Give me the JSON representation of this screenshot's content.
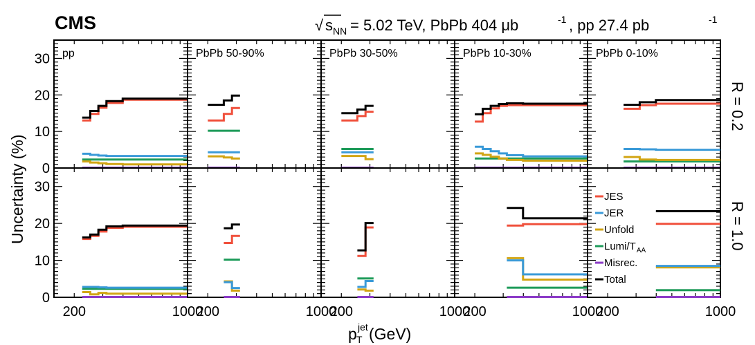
{
  "header": {
    "experiment": "CMS",
    "sqrt": "√",
    "s": "s",
    "s_sub": "NN",
    "energy": " = 5.02 TeV, PbPb 404 μb",
    "sup1": "-1",
    "pp_lumi": ", pp 27.4 pb",
    "sup2": "-1"
  },
  "colors": {
    "JES": "#f0503c",
    "JER": "#3a9ad8",
    "Unfold": "#d2a514",
    "LumiTAA": "#1e9b5a",
    "Misrec": "#8c3cc8",
    "Total": "#000000"
  },
  "legend": [
    {
      "key": "JES",
      "label": "JES",
      "sub": ""
    },
    {
      "key": "JER",
      "label": "JER",
      "sub": ""
    },
    {
      "key": "Unfold",
      "label": "Unfold",
      "sub": ""
    },
    {
      "key": "LumiTAA",
      "label": "Lumi/T",
      "sub": "AA"
    },
    {
      "key": "Misrec",
      "label": "Misrec.",
      "sub": ""
    },
    {
      "key": "Total",
      "label": "Total",
      "sub": ""
    }
  ],
  "chart_data": {
    "type": "line",
    "step": true,
    "ylabel": "Uncertainty (%)",
    "xlabel": "p",
    "xlabel_sup": "jet",
    "xlabel_sub": "T",
    "xlabel_unit": " (GeV)",
    "xscale": "log",
    "xlim": [
      150,
      1000
    ],
    "ylim": [
      0,
      35
    ],
    "xticks": [
      200,
      1000
    ],
    "yticks": [
      0,
      10,
      20,
      30
    ],
    "columns": [
      "pp",
      "PbPb 50-90%",
      "PbPb 30-50%",
      "PbPb 10-30%",
      "PbPb 0-10%"
    ],
    "rows": [
      "R = 0.2",
      "R = 1.0"
    ],
    "panels": [
      [
        {
          "edges": [
            224,
            251,
            282,
            316,
            398,
            1000
          ],
          "series": {
            "JES": [
              13.0,
              14.8,
              16.5,
              17.8,
              18.7
            ],
            "JER": [
              3.9,
              3.6,
              3.4,
              3.3,
              3.3
            ],
            "Unfold": [
              1.8,
              1.5,
              1.3,
              1.1,
              1.0
            ],
            "LumiTAA": [
              2.3,
              2.3,
              2.3,
              2.3,
              2.3
            ],
            "Misrec": [
              0.1,
              0.1,
              0.1,
              0.1,
              0.1
            ],
            "Total": [
              13.8,
              15.6,
              17.0,
              18.3,
              19.0
            ]
          }
        },
        {
          "edges": [
            200,
            251,
            282,
            316
          ],
          "series": {
            "JES": [
              13.0,
              14.8,
              16.4
            ],
            "JER": [
              4.3,
              4.3,
              4.3
            ],
            "Unfold": [
              3.2,
              2.9,
              2.6
            ],
            "LumiTAA": [
              10.2,
              10.2,
              10.2
            ],
            "Misrec": [
              0.1,
              0.1,
              0.1
            ],
            "Total": [
              17.3,
              18.5,
              19.8
            ]
          }
        },
        {
          "edges": [
            200,
            251,
            282,
            316
          ],
          "series": {
            "JES": [
              13.0,
              14.2,
              15.4
            ],
            "JER": [
              4.3,
              4.3,
              4.3
            ],
            "Unfold": [
              3.3,
              3.3,
              2.4
            ],
            "LumiTAA": [
              5.2,
              5.2,
              5.2
            ],
            "Misrec": [
              0.1,
              0.1,
              0.1
            ],
            "Total": [
              15.0,
              16.0,
              17.0
            ]
          }
        },
        {
          "edges": [
            200,
            224,
            251,
            282,
            316,
            398,
            1000
          ],
          "series": {
            "JES": [
              12.7,
              15.0,
              16.3,
              17.0,
              17.2,
              17.2
            ],
            "JER": [
              5.8,
              5.2,
              4.6,
              4.0,
              3.5,
              3.2
            ],
            "Unfold": [
              4.0,
              3.6,
              3.1,
              2.6,
              2.2,
              2.0
            ],
            "LumiTAA": [
              2.6,
              2.6,
              2.6,
              2.6,
              2.6,
              2.6
            ],
            "Misrec": [
              0.1,
              0.1,
              0.1,
              0.1,
              0.1,
              0.1
            ],
            "Total": [
              14.7,
              16.2,
              17.0,
              17.5,
              17.7,
              17.6
            ]
          }
        },
        {
          "edges": [
            251,
            316,
            398,
            1000
          ],
          "series": {
            "JES": [
              16.2,
              17.2,
              17.6
            ],
            "JER": [
              5.2,
              5.1,
              5.0
            ],
            "Unfold": [
              3.0,
              2.3,
              2.2
            ],
            "LumiTAA": [
              1.8,
              1.8,
              1.8
            ],
            "Misrec": [
              0.1,
              0.1,
              0.1
            ],
            "Total": [
              17.3,
              18.0,
              18.6
            ]
          }
        }
      ],
      [
        {
          "edges": [
            224,
            251,
            282,
            316,
            398,
            1000
          ],
          "series": {
            "JES": [
              15.8,
              16.6,
              17.8,
              18.8,
              19.1
            ],
            "JER": [
              2.8,
              2.8,
              2.7,
              2.6,
              2.6
            ],
            "Unfold": [
              1.4,
              0.8,
              1.2,
              1.0,
              1.0
            ],
            "LumiTAA": [
              2.3,
              2.3,
              2.3,
              2.3,
              2.3
            ],
            "Misrec": [
              0.1,
              0.1,
              0.1,
              0.1,
              0.1
            ],
            "Total": [
              16.2,
              17.0,
              18.3,
              19.2,
              19.4
            ]
          }
        },
        {
          "edges": [
            251,
            282,
            316
          ],
          "series": {
            "JES": [
              14.7,
              16.6
            ],
            "JER": [
              4.1,
              2.5
            ],
            "Unfold": [
              4.3,
              1.8
            ],
            "LumiTAA": [
              10.2,
              10.2
            ],
            "Misrec": [
              0.1,
              0.1
            ],
            "Total": [
              18.7,
              19.7
            ]
          }
        },
        {
          "edges": [
            251,
            282,
            316
          ],
          "series": {
            "JES": [
              11.2,
              18.9
            ],
            "JER": [
              2.8,
              4.4
            ],
            "Unfold": [
              2.1,
              1.8
            ],
            "LumiTAA": [
              5.1,
              5.1
            ],
            "Misrec": [
              0.1,
              0.1
            ],
            "Total": [
              12.7,
              20.1
            ]
          }
        },
        {
          "edges": [
            316,
            398,
            1000
          ],
          "series": {
            "JES": [
              19.4,
              19.8
            ],
            "JER": [
              10.0,
              6.2
            ],
            "Unfold": [
              10.6,
              4.8
            ],
            "LumiTAA": [
              2.6,
              2.6
            ],
            "Misrec": [
              0.1,
              0.1
            ],
            "Total": [
              24.2,
              21.4
            ]
          }
        },
        {
          "edges": [
            398,
            1000
          ],
          "series": {
            "JES": [
              19.9
            ],
            "JER": [
              8.5
            ],
            "Unfold": [
              8.1
            ],
            "LumiTAA": [
              1.9
            ],
            "Misrec": [
              0.1
            ],
            "Total": [
              23.3
            ]
          }
        }
      ]
    ]
  }
}
